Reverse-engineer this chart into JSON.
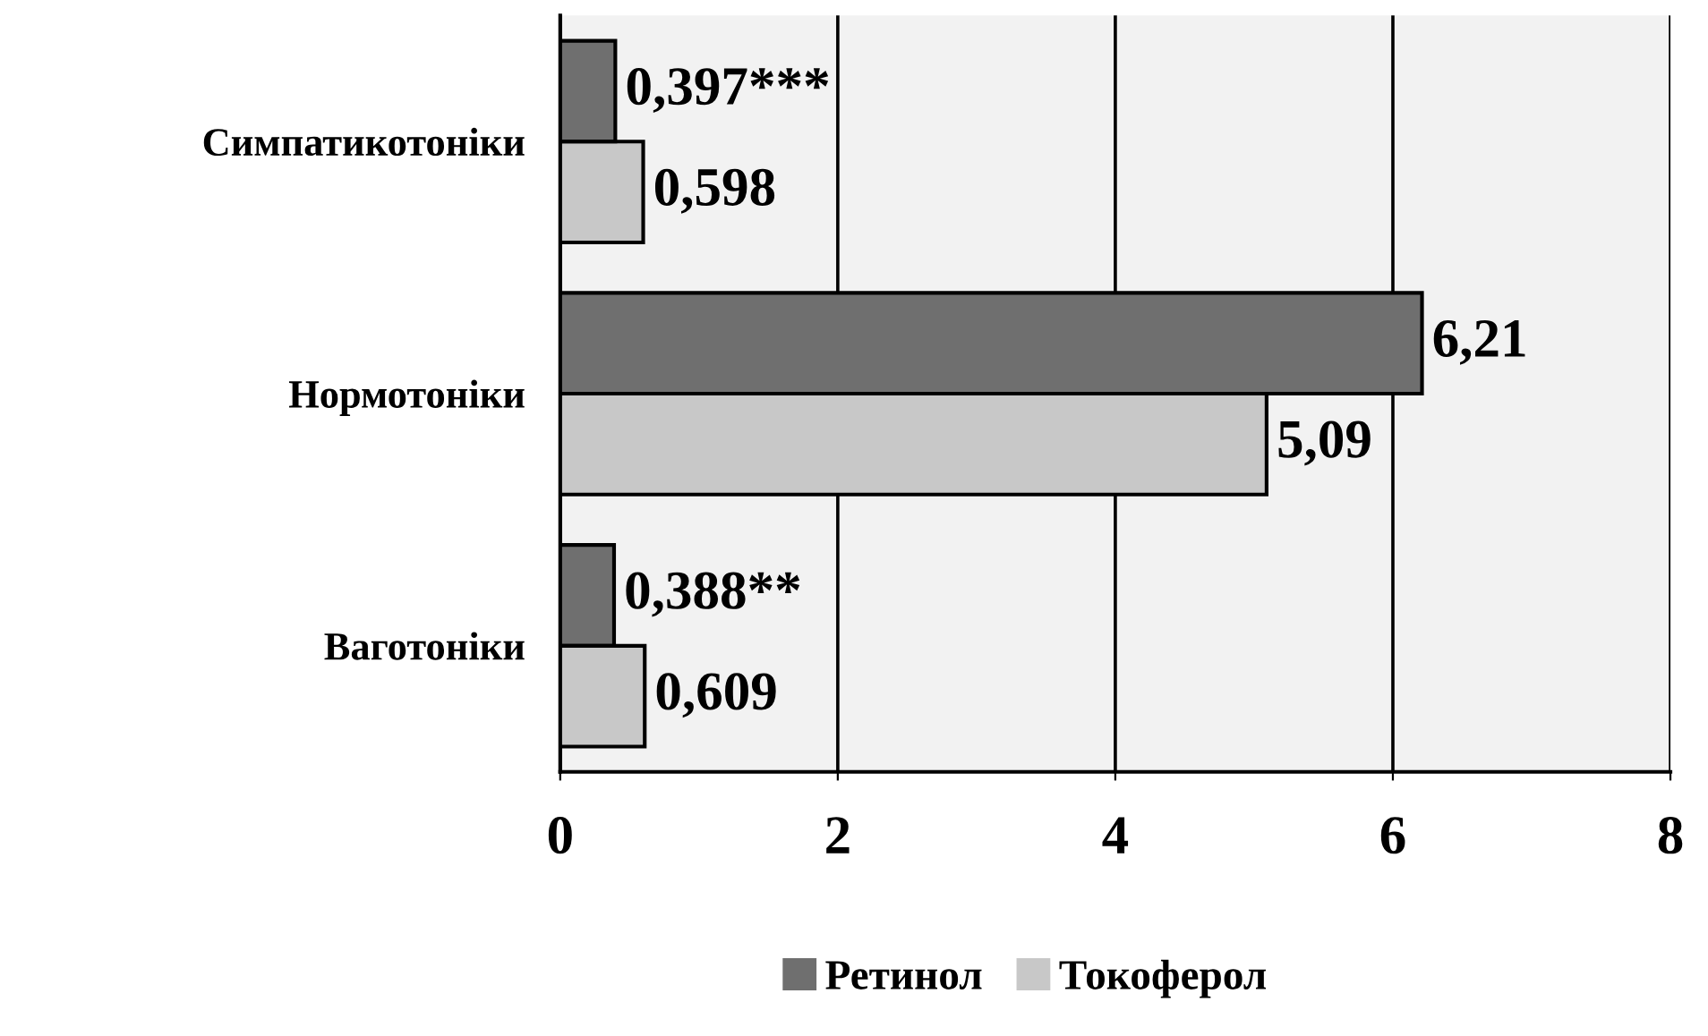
{
  "chart_data": {
    "type": "bar",
    "orientation": "horizontal",
    "categories": [
      "Симпатикотоніки",
      "Нормотоніки",
      "Ваготоніки"
    ],
    "series": [
      {
        "name": "Ретинол",
        "color": "#6f6f6f",
        "values": [
          0.397,
          6.21,
          0.388
        ],
        "value_labels": [
          "0,397***",
          "6,21",
          "0,388**"
        ]
      },
      {
        "name": "Токоферол",
        "color": "#c8c8c8",
        "values": [
          0.598,
          5.09,
          0.609
        ],
        "value_labels": [
          "0,598",
          "5,09",
          "0,609"
        ]
      }
    ],
    "xlim": [
      0,
      8
    ],
    "xticks": [
      0,
      2,
      4,
      6,
      8
    ],
    "grid": "x",
    "legend": "bottom"
  }
}
